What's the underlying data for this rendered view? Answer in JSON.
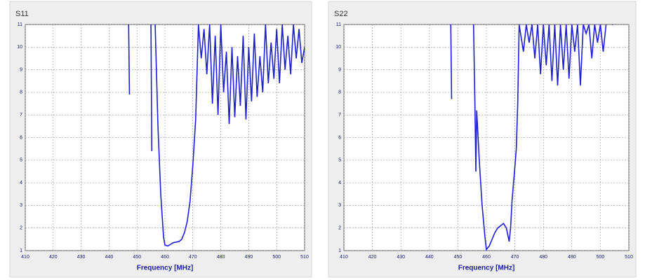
{
  "chart_data": [
    {
      "type": "line",
      "title": "S11",
      "x_label": "Frequency [MHz]",
      "xlim": [
        410,
        510
      ],
      "xticks": [
        410,
        420,
        430,
        440,
        450,
        460,
        470,
        480,
        490,
        500,
        510
      ],
      "ylim": [
        1,
        11
      ],
      "yticks": [
        1,
        2,
        3,
        4,
        5,
        6,
        7,
        8,
        9,
        10,
        11
      ],
      "grid": true,
      "series": [
        {
          "color": "#1f1fd6",
          "x": [
            447,
            447.3,
            447.6,
            455,
            455.3,
            455.6,
            456.5,
            457.5,
            458.5,
            459.5,
            460,
            461,
            463,
            465,
            466,
            467,
            468,
            469,
            470,
            471,
            472,
            473,
            474,
            475,
            476,
            477,
            478,
            479,
            480,
            481,
            482,
            483,
            484,
            485,
            486,
            487,
            488,
            489,
            490,
            491,
            492,
            493,
            494,
            495,
            496,
            497,
            498,
            499,
            500,
            501,
            502,
            503,
            504,
            505,
            506,
            507,
            508,
            509,
            510
          ],
          "values": [
            11,
            7.9,
            null,
            11,
            5.4,
            null,
            11,
            6.5,
            3.5,
            1.6,
            1.25,
            1.2,
            1.35,
            1.4,
            1.5,
            1.8,
            2.3,
            3.2,
            4.8,
            6.8,
            11,
            9.5,
            10.8,
            8.8,
            11,
            7.5,
            10.5,
            7,
            11,
            8,
            9.8,
            6.6,
            10,
            6.9,
            9.6,
            7.4,
            10.5,
            6.8,
            10,
            7.6,
            10.6,
            7.8,
            9.6,
            8,
            11,
            8.4,
            10.2,
            8.6,
            10.8,
            8.4,
            11,
            9,
            10.5,
            8.8,
            11,
            9.5,
            10.8,
            9.3,
            10
          ]
        }
      ]
    },
    {
      "type": "line",
      "title": "S22",
      "x_label": "Frequency [MHz]",
      "xlim": [
        410,
        510
      ],
      "xticks": [
        410,
        420,
        430,
        440,
        450,
        460,
        470,
        480,
        490,
        500,
        510
      ],
      "ylim": [
        1,
        11
      ],
      "yticks": [
        1,
        2,
        3,
        4,
        5,
        6,
        7,
        8,
        9,
        10,
        11
      ],
      "grid": true,
      "series": [
        {
          "color": "#1f1fd6",
          "x": [
            447.5,
            447.8,
            448,
            455.5,
            456,
            456.3,
            456.6,
            457.5,
            458.5,
            459.5,
            460,
            461,
            462,
            463,
            464,
            465,
            466,
            467,
            468,
            468.5,
            469,
            470,
            470.5,
            471,
            471.5,
            473,
            474,
            475,
            476,
            477,
            478,
            479,
            480,
            481,
            482,
            483,
            484,
            485,
            486,
            487,
            488,
            489,
            490,
            491,
            492,
            493,
            494,
            495,
            496,
            497,
            498,
            499,
            500,
            501,
            502,
            503,
            504,
            504.5
          ],
          "values": [
            11,
            7.7,
            null,
            11,
            7.3,
            4.5,
            7.2,
            5,
            3,
            1.6,
            1.05,
            1.2,
            1.5,
            1.8,
            2,
            2.1,
            2.2,
            2,
            1.4,
            2,
            3.2,
            4.7,
            5.5,
            7.5,
            11,
            9.8,
            11,
            10.2,
            11,
            9.5,
            11,
            8.8,
            11,
            9.2,
            11,
            8.5,
            11,
            8.3,
            11,
            9,
            11,
            8.6,
            11,
            9.8,
            11,
            8.3,
            11,
            10.6,
            11,
            9.5,
            11,
            10.2,
            11,
            9.8,
            11,
            null,
            11,
            11
          ]
        }
      ]
    }
  ]
}
